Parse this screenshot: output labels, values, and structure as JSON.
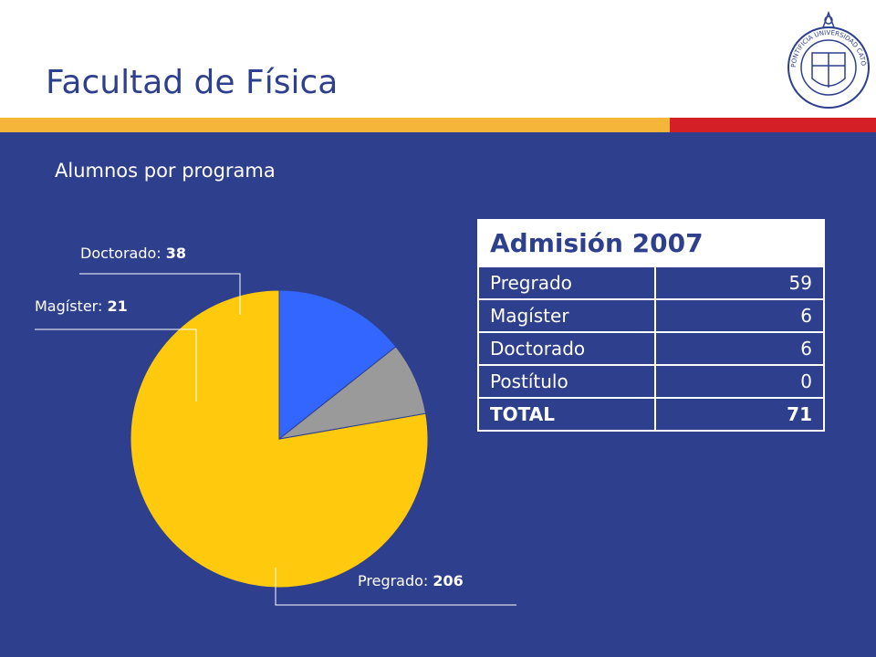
{
  "slide": {
    "title": "Facultad de Física",
    "subtitle": "Alumnos por programa",
    "seal_text": "PONTIFICIA UNIVERSIDAD CATÓLICA DE CHILE"
  },
  "colors": {
    "primary": "#2e3f8e",
    "stripe_orange": "#f5b53a",
    "stripe_red": "#d51f26",
    "pregrado": "#ffc90e",
    "magister": "#9a9a9a",
    "doctorado": "#3366ff"
  },
  "chart_data": {
    "type": "pie",
    "slices": [
      {
        "label": "Pregrado",
        "value": 206
      },
      {
        "label": "Magíster",
        "value": 21
      },
      {
        "label": "Doctorado",
        "value": 38
      }
    ],
    "title": "Alumnos por programa"
  },
  "table": {
    "header": "Admisión 2007",
    "rows": [
      {
        "label": "Pregrado",
        "value": "59"
      },
      {
        "label": "Magíster",
        "value": "6"
      },
      {
        "label": "Doctorado",
        "value": "6"
      },
      {
        "label": "Postítulo",
        "value": "0"
      },
      {
        "label": "TOTAL",
        "value": "71"
      }
    ]
  }
}
